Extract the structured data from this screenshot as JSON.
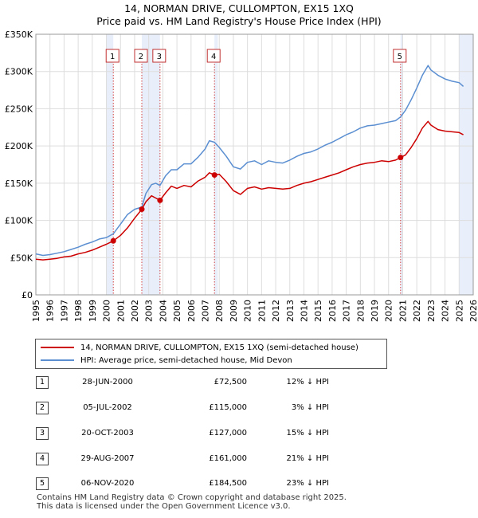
{
  "chart_data": {
    "type": "line",
    "title": "14, NORMAN DRIVE, CULLOMPTON, EX15 1XQ",
    "subtitle": "Price paid vs. HM Land Registry's House Price Index (HPI)",
    "xlim": [
      1995,
      2026
    ],
    "ylim": [
      0,
      350000
    ],
    "y_ticks": [
      {
        "value": 0,
        "label": "£0"
      },
      {
        "value": 50000,
        "label": "£50K"
      },
      {
        "value": 100000,
        "label": "£100K"
      },
      {
        "value": 150000,
        "label": "£150K"
      },
      {
        "value": 200000,
        "label": "£200K"
      },
      {
        "value": 250000,
        "label": "£250K"
      },
      {
        "value": 300000,
        "label": "£300K"
      },
      {
        "value": 350000,
        "label": "£350K"
      }
    ],
    "x_ticks": [
      "1995",
      "1996",
      "1997",
      "1998",
      "1999",
      "2000",
      "2001",
      "2002",
      "2003",
      "2004",
      "2005",
      "2006",
      "2007",
      "2008",
      "2009",
      "2010",
      "2011",
      "2012",
      "2013",
      "2014",
      "2015",
      "2016",
      "2017",
      "2018",
      "2019",
      "2020",
      "2021",
      "2022",
      "2023",
      "2024",
      "2025",
      "2026"
    ],
    "shaded_regions": [
      [
        2000.0,
        2000.49
      ],
      [
        2002.51,
        2003.8
      ],
      [
        2007.66,
        2007.9
      ],
      [
        2020.85,
        2021.0
      ],
      [
        2025.0,
        2026.0
      ]
    ],
    "series": [
      {
        "name": "14, NORMAN DRIVE, CULLOMPTON, EX15 1XQ (semi-detached house)",
        "color": "#cc0000",
        "x": [
          1995.0,
          1995.5,
          1996.0,
          1996.5,
          1997.0,
          1997.5,
          1998.0,
          1998.5,
          1999.0,
          1999.5,
          2000.0,
          2000.49,
          2001.0,
          2001.5,
          2002.0,
          2002.51,
          2002.8,
          2003.2,
          2003.5,
          2003.8,
          2004.2,
          2004.6,
          2005.0,
          2005.5,
          2006.0,
          2006.5,
          2007.0,
          2007.3,
          2007.66,
          2008.0,
          2008.5,
          2009.0,
          2009.5,
          2010.0,
          2010.5,
          2011.0,
          2011.5,
          2012.0,
          2012.5,
          2013.0,
          2013.5,
          2014.0,
          2014.5,
          2015.0,
          2015.5,
          2016.0,
          2016.5,
          2017.0,
          2017.5,
          2018.0,
          2018.5,
          2019.0,
          2019.5,
          2020.0,
          2020.5,
          2020.85,
          2021.2,
          2021.6,
          2022.0,
          2022.4,
          2022.8,
          2023.0,
          2023.5,
          2024.0,
          2024.5,
          2025.0,
          2025.3
        ],
        "values": [
          48000,
          47000,
          48000,
          49000,
          51000,
          52000,
          55000,
          57000,
          60000,
          64000,
          68000,
          72500,
          80000,
          90000,
          103000,
          115000,
          125000,
          133000,
          130000,
          127000,
          137000,
          146000,
          143000,
          147000,
          145000,
          153000,
          158000,
          164000,
          161000,
          162000,
          152000,
          140000,
          135000,
          143000,
          145000,
          142000,
          144000,
          143000,
          142000,
          143000,
          147000,
          150000,
          152000,
          155000,
          158000,
          161000,
          164000,
          168000,
          172000,
          175000,
          177000,
          178000,
          180000,
          179000,
          181000,
          184500,
          188000,
          198000,
          210000,
          224000,
          233000,
          228000,
          222000,
          220000,
          219000,
          218000,
          215000
        ]
      },
      {
        "name": "HPI: Average price, semi-detached house, Mid Devon",
        "color": "#5b8fd1",
        "x": [
          1995.0,
          1995.5,
          1996.0,
          1996.5,
          1997.0,
          1997.5,
          1998.0,
          1998.5,
          1999.0,
          1999.5,
          2000.0,
          2000.49,
          2001.0,
          2001.5,
          2002.0,
          2002.51,
          2002.8,
          2003.2,
          2003.5,
          2003.8,
          2004.2,
          2004.6,
          2005.0,
          2005.5,
          2006.0,
          2006.5,
          2007.0,
          2007.3,
          2007.66,
          2008.0,
          2008.5,
          2009.0,
          2009.5,
          2010.0,
          2010.5,
          2011.0,
          2011.5,
          2012.0,
          2012.5,
          2013.0,
          2013.5,
          2014.0,
          2014.5,
          2015.0,
          2015.5,
          2016.0,
          2016.5,
          2017.0,
          2017.5,
          2018.0,
          2018.5,
          2019.0,
          2019.5,
          2020.0,
          2020.5,
          2020.85,
          2021.2,
          2021.6,
          2022.0,
          2022.4,
          2022.8,
          2023.0,
          2023.5,
          2024.0,
          2024.5,
          2025.0,
          2025.3
        ],
        "values": [
          55000,
          53000,
          54000,
          56000,
          58000,
          61000,
          64000,
          68000,
          71000,
          75000,
          77000,
          82000,
          95000,
          108000,
          115000,
          118000,
          136000,
          148000,
          150000,
          147000,
          160000,
          168000,
          168000,
          176000,
          176000,
          185000,
          196000,
          207000,
          205000,
          198000,
          186000,
          172000,
          169000,
          178000,
          180000,
          175000,
          180000,
          178000,
          177000,
          181000,
          186000,
          190000,
          192000,
          196000,
          201000,
          205000,
          210000,
          215000,
          219000,
          224000,
          227000,
          228000,
          230000,
          232000,
          234000,
          239000,
          248000,
          262000,
          278000,
          295000,
          308000,
          302000,
          295000,
          290000,
          287000,
          285000,
          280000
        ]
      }
    ],
    "transactions": [
      {
        "num": "1",
        "year": 2000.49,
        "price": 72500
      },
      {
        "num": "2",
        "year": 2002.51,
        "price": 115000
      },
      {
        "num": "3",
        "year": 2003.8,
        "price": 127000
      },
      {
        "num": "4",
        "year": 2007.66,
        "price": 161000
      },
      {
        "num": "5",
        "year": 2020.85,
        "price": 184500
      }
    ],
    "grid": true,
    "legend_position": "bottom"
  },
  "legend": {
    "property_label": "14, NORMAN DRIVE, CULLOMPTON, EX15 1XQ (semi-detached house)",
    "hpi_label": "HPI: Average price, semi-detached house, Mid Devon",
    "property_color": "#cc0000",
    "hpi_color": "#5b8fd1"
  },
  "table": [
    {
      "num": "1",
      "date": "28-JUN-2000",
      "price": "£72,500",
      "hpi": "12% ↓ HPI"
    },
    {
      "num": "2",
      "date": "05-JUL-2002",
      "price": "£115,000",
      "hpi": "3% ↓ HPI"
    },
    {
      "num": "3",
      "date": "20-OCT-2003",
      "price": "£127,000",
      "hpi": "15% ↓ HPI"
    },
    {
      "num": "4",
      "date": "29-AUG-2007",
      "price": "£161,000",
      "hpi": "21% ↓ HPI"
    },
    {
      "num": "5",
      "date": "06-NOV-2020",
      "price": "£184,500",
      "hpi": "23% ↓ HPI"
    }
  ],
  "footer": {
    "line1": "Contains HM Land Registry data © Crown copyright and database right 2025.",
    "line2": "This data is licensed under the Open Government Licence v3.0."
  }
}
